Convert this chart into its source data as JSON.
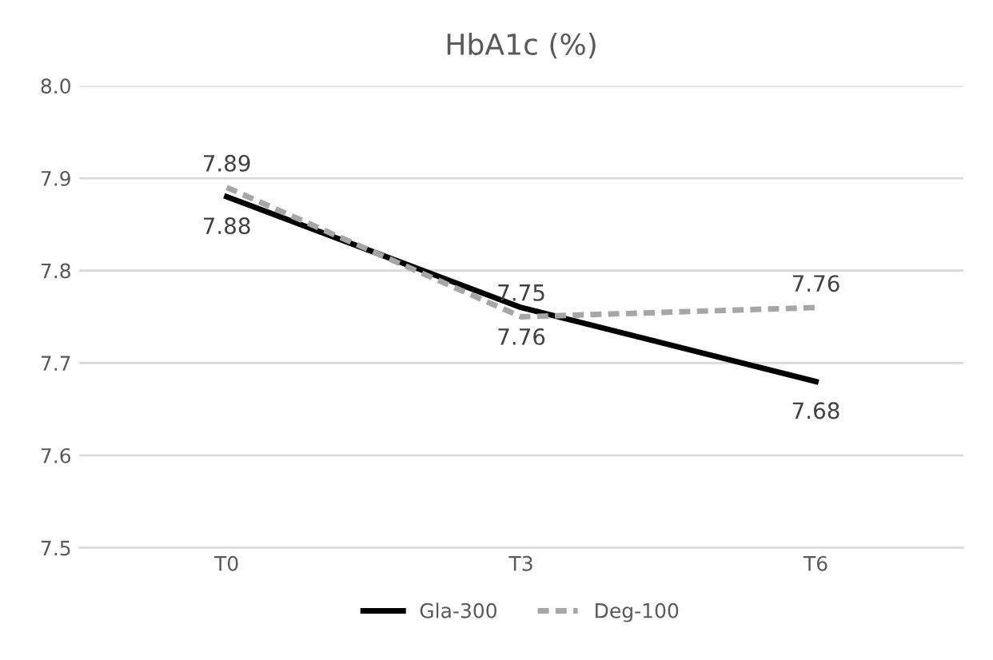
{
  "chart_data": {
    "type": "line",
    "title": "HbA1c (%)",
    "categories": [
      "T0",
      "T3",
      "T6"
    ],
    "series": [
      {
        "name": "Gla-300",
        "color": "#000000",
        "line_style": "solid",
        "values": [
          7.88,
          7.76,
          7.68
        ]
      },
      {
        "name": "Deg-100",
        "color": "#a6a6a6",
        "line_style": "dashed",
        "values": [
          7.89,
          7.75,
          7.76
        ]
      }
    ],
    "ylim": [
      7.5,
      8.0
    ],
    "yticks": [
      "7.5",
      "7.6",
      "7.7",
      "7.8",
      "7.9",
      "8.0"
    ],
    "grid": "y",
    "legend": "bottom",
    "data_labels": true,
    "marker": "none"
  }
}
